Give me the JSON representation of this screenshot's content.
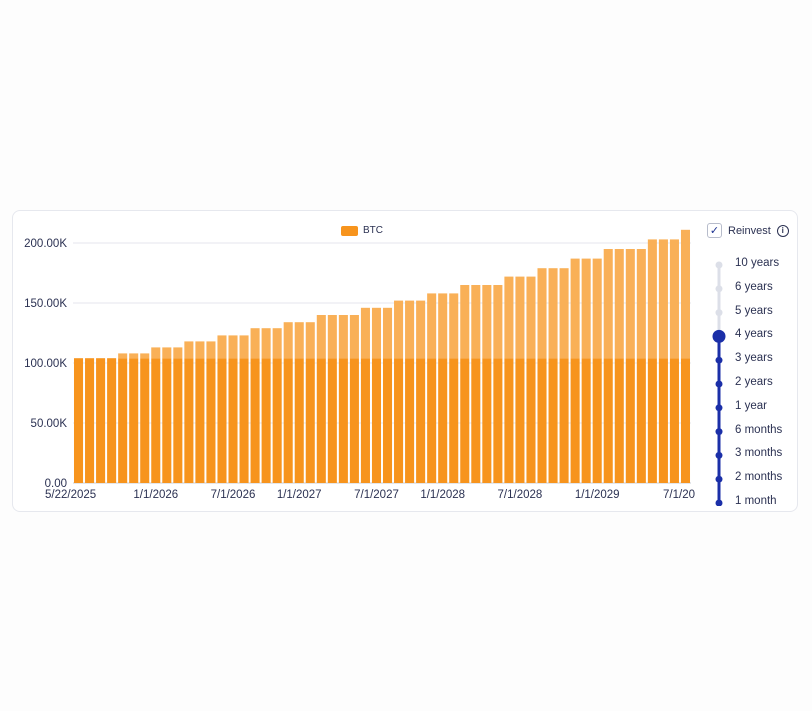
{
  "legend": {
    "label": "BTC",
    "color": "#f7941d"
  },
  "reinvest": {
    "label": "Reinvest",
    "checked": true,
    "check_glyph": "✓",
    "info_glyph": "i"
  },
  "periods": {
    "options": [
      "10 years",
      "6 years",
      "5 years",
      "4 years",
      "3 years",
      "2 years",
      "1 year",
      "6 months",
      "3 months",
      "2 months",
      "1 month"
    ],
    "selected": "4 years",
    "active_color": "#1b2fa8",
    "inactive_color": "#dcdfe8"
  },
  "chart_data": {
    "type": "bar",
    "stacked": true,
    "series": [
      {
        "name": "BTC",
        "color": "#f7941d",
        "values": [
          104000,
          104000,
          104000,
          104000,
          104000,
          104000,
          104000,
          104000,
          104000,
          104000,
          104000,
          104000,
          104000,
          104000,
          104000,
          104000,
          104000,
          104000,
          104000,
          104000,
          104000,
          104000,
          104000,
          104000,
          104000,
          104000,
          104000,
          104000,
          104000,
          104000,
          104000,
          104000,
          104000,
          104000,
          104000,
          104000,
          104000,
          104000,
          104000,
          104000,
          104000,
          104000,
          104000,
          104000,
          104000,
          104000,
          104000,
          104000,
          104000,
          104000,
          104000,
          104000,
          104000,
          104000,
          104000,
          104000
        ]
      },
      {
        "name": "",
        "color": "#f9b057",
        "values": [
          0,
          0,
          0,
          0,
          4000,
          4000,
          4000,
          9000,
          9000,
          9000,
          14000,
          14000,
          14000,
          19000,
          19000,
          19000,
          25000,
          25000,
          25000,
          30000,
          30000,
          30000,
          36000,
          36000,
          36000,
          36000,
          42000,
          42000,
          42000,
          48000,
          48000,
          48000,
          54000,
          54000,
          54000,
          61000,
          61000,
          61000,
          61000,
          68000,
          68000,
          68000,
          75000,
          75000,
          75000,
          83000,
          83000,
          83000,
          91000,
          91000,
          91000,
          91000,
          99000,
          99000,
          99000,
          107000
        ]
      }
    ],
    "x_tick_labels": [
      "5/22/2025",
      "1/1/2026",
      "7/1/2026",
      "1/1/2027",
      "7/1/2027",
      "1/1/2028",
      "7/1/2028",
      "1/1/2029",
      "7/1/20"
    ],
    "x_tick_bar_index": [
      0,
      7,
      14,
      20,
      27,
      33,
      40,
      47,
      53
    ],
    "y_tick_labels": [
      "0.00",
      "50.00K",
      "100.00K",
      "150.00K",
      "200.00K"
    ],
    "y_ticks": [
      0,
      50000,
      100000,
      150000,
      200000
    ],
    "ylim": [
      0,
      200000
    ],
    "grid": true,
    "legend_position": "top-center"
  }
}
